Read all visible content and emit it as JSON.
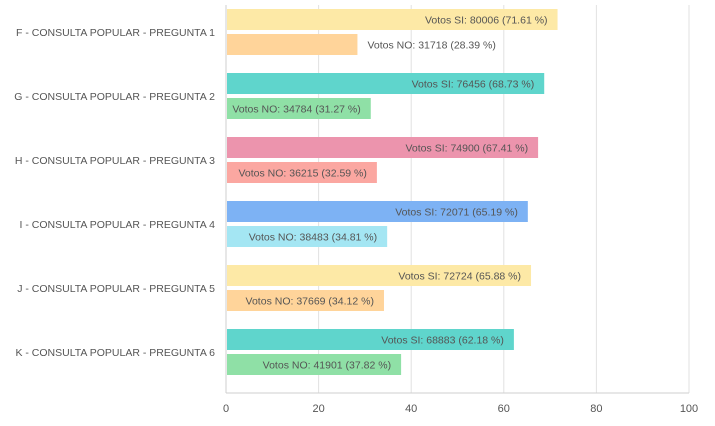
{
  "chart_data": {
    "type": "bar",
    "orientation": "horizontal",
    "xlim": [
      0,
      100
    ],
    "x_ticks": [
      "0",
      "20",
      "40",
      "60",
      "80",
      "100"
    ],
    "grid": true,
    "categories": [
      "F - CONSULTA POPULAR - PREGUNTA 1",
      "G - CONSULTA POPULAR - PREGUNTA 2",
      "H - CONSULTA POPULAR - PREGUNTA 3",
      "I - CONSULTA POPULAR - PREGUNTA 4",
      "J - CONSULTA POPULAR - PREGUNTA 5",
      "K - CONSULTA POPULAR - PREGUNTA 6"
    ],
    "series": [
      {
        "values": [
          71.61,
          68.73,
          67.41,
          65.19,
          65.88,
          62.18
        ],
        "labels": [
          "Votos SI: 80006 (71.61 %)",
          "Votos SI: 76456 (68.73 %)",
          "Votos SI: 74900 (67.41 %)",
          "Votos SI: 72071 (65.19 %)",
          "Votos SI: 72724 (65.88 %)",
          "Votos SI: 68883 (62.18 %)"
        ],
        "colors": [
          "#fde9a6",
          "#5fd5cc",
          "#ec94ad",
          "#7db2f4",
          "#fde9a6",
          "#5fd5cc"
        ]
      },
      {
        "values": [
          28.39,
          31.27,
          32.59,
          34.81,
          34.12,
          37.82
        ],
        "labels": [
          "Votos NO: 31718 (28.39 %)",
          "Votos NO: 34784 (31.27 %)",
          "Votos NO: 36215 (32.59 %)",
          "Votos NO: 38483 (34.81 %)",
          "Votos NO: 37669 (34.12 %)",
          "Votos NO: 41901 (37.82 %)"
        ],
        "colors": [
          "#ffd49a",
          "#8fe0a6",
          "#fba7a1",
          "#a4e6f3",
          "#ffd49a",
          "#8fe0a6"
        ]
      }
    ]
  }
}
